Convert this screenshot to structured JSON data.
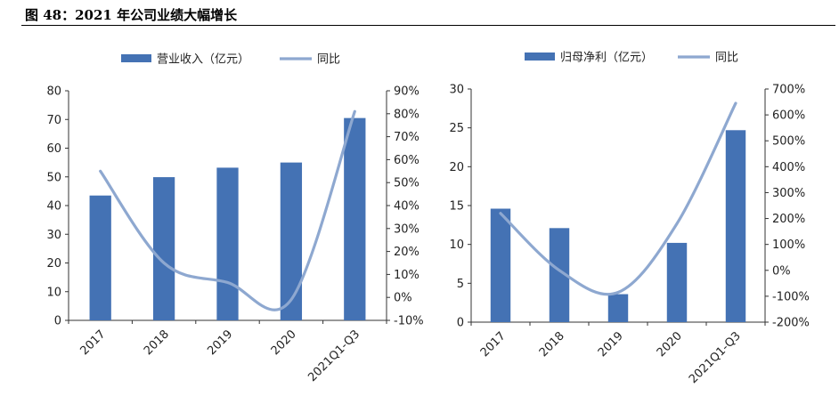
{
  "page": {
    "title": "图 48：2021 年公司业绩大幅增长"
  },
  "colors": {
    "bar": "#4472B4",
    "line": "#8EA8D0"
  },
  "chart_data": [
    {
      "type": "bar+line",
      "categories": [
        "2017",
        "2018",
        "2019",
        "2020",
        "2021Q1-Q3"
      ],
      "series": [
        {
          "name": "营业收入（亿元）",
          "kind": "bar",
          "axis": "left",
          "values": [
            43.5,
            49.9,
            53.2,
            55.0,
            70.5
          ]
        },
        {
          "name": "同比",
          "kind": "line",
          "axis": "right",
          "values": [
            0.55,
            0.15,
            0.065,
            -0.01,
            0.81
          ]
        }
      ],
      "y_left": {
        "min": 0,
        "max": 80,
        "step": 10,
        "ticks": [
          "0",
          "10",
          "20",
          "30",
          "40",
          "50",
          "60",
          "70",
          "80"
        ]
      },
      "y_right": {
        "min": -0.1,
        "max": 0.9,
        "step": 0.1,
        "ticks": [
          "-10%",
          "0%",
          "10%",
          "20%",
          "30%",
          "40%",
          "50%",
          "60%",
          "70%",
          "80%",
          "90%"
        ]
      },
      "legend_position": "top-center",
      "grid": false
    },
    {
      "type": "bar+line",
      "categories": [
        "2017",
        "2018",
        "2019",
        "2020",
        "2021Q1-Q3"
      ],
      "series": [
        {
          "name": "归母净利（亿元）",
          "kind": "bar",
          "axis": "left",
          "values": [
            14.6,
            12.1,
            3.6,
            10.2,
            24.7
          ]
        },
        {
          "name": "同比",
          "kind": "line",
          "axis": "right",
          "values": [
            2.2,
            0.0,
            -0.85,
            1.8,
            6.45
          ]
        }
      ],
      "y_left": {
        "min": 0,
        "max": 30,
        "step": 5,
        "ticks": [
          "0",
          "5",
          "10",
          "15",
          "20",
          "25",
          "30"
        ]
      },
      "y_right": {
        "min": -2,
        "max": 7,
        "step": 1,
        "ticks": [
          "-200%",
          "-100%",
          "0%",
          "100%",
          "200%",
          "300%",
          "400%",
          "500%",
          "600%",
          "700%"
        ]
      },
      "legend_position": "top-center",
      "grid": false
    }
  ]
}
